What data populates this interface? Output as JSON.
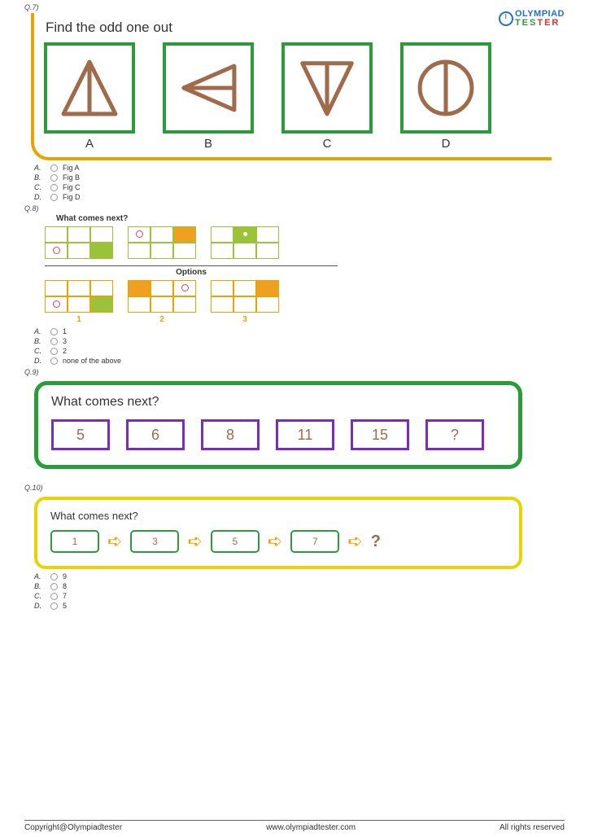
{
  "brand": {
    "line1": "OLYMPIAD",
    "line2_green": "TES",
    "line2_red": "TER"
  },
  "colors": {
    "green": "#2a9d3a",
    "orange": "#e8a400",
    "yellow": "#e8d400",
    "purple": "#7b2cbf",
    "brown": "#a06b4a",
    "lime": "#9ac33a",
    "orangeFill": "#f0a020",
    "pink": "#e33d7a"
  },
  "q7": {
    "number": "Q.7)",
    "title": "Find the odd one out",
    "labels": [
      "A",
      "B",
      "C",
      "D"
    ],
    "answers": [
      {
        "letter": "A.",
        "text": "Fig A"
      },
      {
        "letter": "B.",
        "text": "Fig B"
      },
      {
        "letter": "C.",
        "text": "Fig C"
      },
      {
        "letter": "D.",
        "text": "Fig D"
      }
    ]
  },
  "q8": {
    "number": "Q.8)",
    "title": "What comes next?",
    "optionsTitle": "Options",
    "sequence": [
      {
        "border": "green",
        "cells": [
          "",
          "",
          "",
          "pinkring",
          "",
          "limefill"
        ]
      },
      {
        "border": "green",
        "cells": [
          "pinkring",
          "",
          "orangefill",
          "",
          "",
          ""
        ]
      },
      {
        "border": "green",
        "cells": [
          "",
          "limefill whitedot",
          "",
          "",
          "",
          ""
        ]
      }
    ],
    "options": [
      {
        "border": "orange",
        "cells": [
          "",
          "",
          "",
          "pinkring",
          "",
          "limefill"
        ]
      },
      {
        "border": "orange",
        "cells": [
          "orangefill",
          "",
          "pinkring",
          "",
          "",
          ""
        ]
      },
      {
        "border": "orange",
        "cells": [
          "",
          "",
          "orangefill",
          "",
          "",
          ""
        ]
      }
    ],
    "optionLabels": [
      "1",
      "2",
      "3"
    ],
    "answers": [
      {
        "letter": "A.",
        "text": "1"
      },
      {
        "letter": "B.",
        "text": "3"
      },
      {
        "letter": "C.",
        "text": "2"
      },
      {
        "letter": "D.",
        "text": "none of the above"
      }
    ]
  },
  "q9": {
    "number": "Q.9)",
    "title": "What comes next?",
    "values": [
      "5",
      "6",
      "8",
      "11",
      "15",
      "?"
    ]
  },
  "q10": {
    "number": "Q.10)",
    "title": "What comes next?",
    "values": [
      "1",
      "3",
      "5",
      "7"
    ],
    "final": "?",
    "answers": [
      {
        "letter": "A.",
        "text": "9"
      },
      {
        "letter": "B.",
        "text": "8"
      },
      {
        "letter": "C.",
        "text": "7"
      },
      {
        "letter": "D.",
        "text": "5"
      }
    ]
  },
  "footer": {
    "left": "Copyright@Olympiadtester",
    "center": "www.olympiadtester.com",
    "right": "All rights reserved"
  }
}
